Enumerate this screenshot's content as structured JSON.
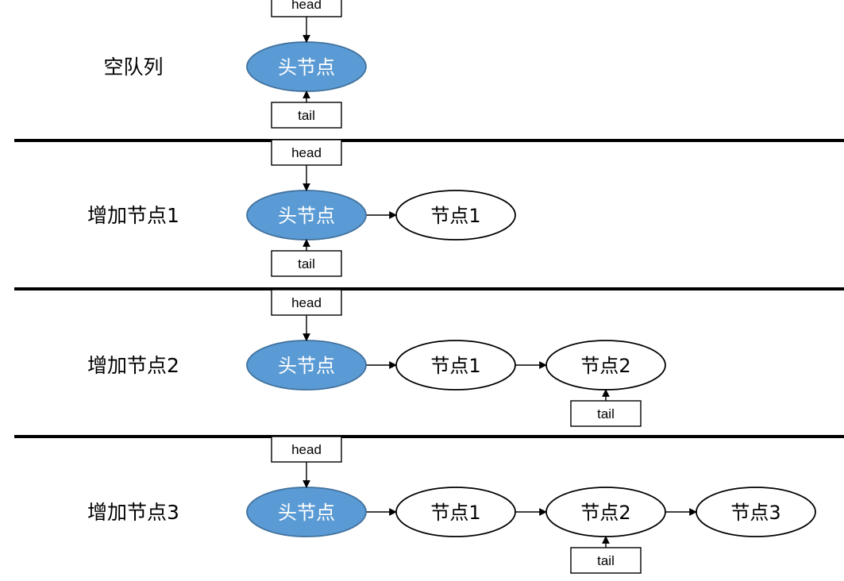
{
  "colors": {
    "head_node_fill": "#5b9bd5",
    "head_node_stroke": "#41719c",
    "head_node_text": "#ffffff",
    "node_fill": "#ffffff",
    "node_stroke": "#000000",
    "node_text": "#000000"
  },
  "rows": [
    {
      "label": "空队列",
      "head_pointer": "head",
      "tail_pointer": "tail",
      "nodes": [
        {
          "label": "头节点",
          "is_head": true
        }
      ],
      "tail_index": 0
    },
    {
      "label": "增加节点1",
      "head_pointer": "head",
      "tail_pointer": "tail",
      "nodes": [
        {
          "label": "头节点",
          "is_head": true
        },
        {
          "label": "节点1",
          "is_head": false
        }
      ],
      "tail_index": 0
    },
    {
      "label": "增加节点2",
      "head_pointer": "head",
      "tail_pointer": "tail",
      "nodes": [
        {
          "label": "头节点",
          "is_head": true
        },
        {
          "label": "节点1",
          "is_head": false
        },
        {
          "label": "节点2",
          "is_head": false
        }
      ],
      "tail_index": 2
    },
    {
      "label": "增加节点3",
      "head_pointer": "head",
      "tail_pointer": "tail",
      "nodes": [
        {
          "label": "头节点",
          "is_head": true
        },
        {
          "label": "节点1",
          "is_head": false
        },
        {
          "label": "节点2",
          "is_head": false
        },
        {
          "label": "节点3",
          "is_head": false
        }
      ],
      "tail_index": 2
    }
  ]
}
